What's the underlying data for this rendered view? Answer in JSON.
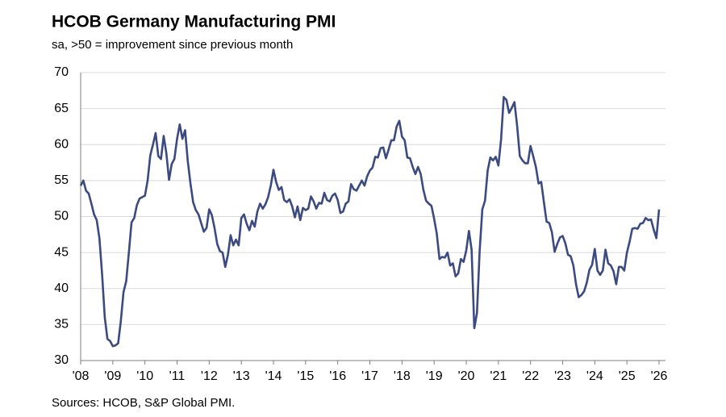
{
  "chart_data": {
    "type": "line",
    "title": "HCOB Germany Manufacturing PMI",
    "subtitle": "sa, >50 = improvement since previous month",
    "source": "Sources: HCOB, S&P Global PMI.",
    "categories": [
      "'08",
      null,
      null,
      null,
      null,
      null,
      null,
      null,
      null,
      null,
      null,
      null,
      "'09",
      null,
      null,
      null,
      null,
      null,
      null,
      null,
      null,
      null,
      null,
      null,
      "'10",
      null,
      null,
      null,
      null,
      null,
      null,
      null,
      null,
      null,
      null,
      null,
      "'11",
      null,
      null,
      null,
      null,
      null,
      null,
      null,
      null,
      null,
      null,
      null,
      "'12",
      null,
      null,
      null,
      null,
      null,
      null,
      null,
      null,
      null,
      null,
      null,
      "'13",
      null,
      null,
      null,
      null,
      null,
      null,
      null,
      null,
      null,
      null,
      null,
      "'14",
      null,
      null,
      null,
      null,
      null,
      null,
      null,
      null,
      null,
      null,
      null,
      "'15",
      null,
      null,
      null,
      null,
      null,
      null,
      null,
      null,
      null,
      null,
      null,
      "'16",
      null,
      null,
      null,
      null,
      null,
      null,
      null,
      null,
      null,
      null,
      null,
      "'17",
      null,
      null,
      null,
      null,
      null,
      null,
      null,
      null,
      null,
      null,
      null,
      "'18",
      null,
      null,
      null,
      null,
      null,
      null,
      null,
      null,
      null,
      null,
      null,
      "'19",
      null,
      null,
      null,
      null,
      null,
      null,
      null,
      null,
      null,
      null,
      null,
      "'20",
      null,
      null,
      null,
      null,
      null,
      null,
      null,
      null,
      null,
      null,
      null,
      "'21",
      null,
      null,
      null,
      null,
      null,
      null,
      null,
      null,
      null,
      null,
      null,
      "'22",
      null,
      null,
      null,
      null,
      null,
      null,
      null,
      null,
      null,
      null,
      null,
      "'23",
      null,
      null,
      null,
      null,
      null,
      null,
      null,
      null,
      null,
      null,
      null,
      "'24",
      null,
      null,
      null,
      null,
      null,
      null,
      null,
      null,
      null,
      null,
      null,
      "'25",
      null,
      null,
      null,
      null,
      null,
      null,
      null,
      null,
      null,
      null,
      null,
      "'26"
    ],
    "series": [
      {
        "color": "#3b4a80",
        "values": [
          54.3,
          55.0,
          53.6,
          53.2,
          51.8,
          50.3,
          49.5,
          47.0,
          42.0,
          36.0,
          33.0,
          32.7,
          32.0,
          32.1,
          32.4,
          35.5,
          39.5,
          41.0,
          45.0,
          49.2,
          49.8,
          51.6,
          52.5,
          52.7,
          52.9,
          55.0,
          58.5,
          60.0,
          61.6,
          58.4,
          58.0,
          61.2,
          58.8,
          55.1,
          57.3,
          58.0,
          60.8,
          62.8,
          60.8,
          62.0,
          57.7,
          54.6,
          52.0,
          50.9,
          50.3,
          49.1,
          47.9,
          48.4,
          51.0,
          50.2,
          48.4,
          46.2,
          45.2,
          45.0,
          43.0,
          44.7,
          47.4,
          46.0,
          46.8,
          46.0,
          49.8,
          50.3,
          49.0,
          48.1,
          49.4,
          48.6,
          50.7,
          51.8,
          51.1,
          51.7,
          52.7,
          54.3,
          56.5,
          54.8,
          53.7,
          54.1,
          52.3,
          52.0,
          52.4,
          51.4,
          49.9,
          51.4,
          49.5,
          51.2,
          50.9,
          51.1,
          52.8,
          52.1,
          51.1,
          51.9,
          51.8,
          53.3,
          52.3,
          52.1,
          52.9,
          53.2,
          52.3,
          50.5,
          50.7,
          51.8,
          52.1,
          54.5,
          53.8,
          53.6,
          54.3,
          55.0,
          54.3,
          55.6,
          56.4,
          56.8,
          58.3,
          58.2,
          59.5,
          59.6,
          58.1,
          59.3,
          60.6,
          60.6,
          62.5,
          63.3,
          61.1,
          60.6,
          58.2,
          58.1,
          56.9,
          55.9,
          56.9,
          55.9,
          53.7,
          52.2,
          51.8,
          51.5,
          49.7,
          47.6,
          44.1,
          44.4,
          44.3,
          45.0,
          43.2,
          43.5,
          41.7,
          42.1,
          44.1,
          43.7,
          45.3,
          48.0,
          45.4,
          34.5,
          36.6,
          45.2,
          51.0,
          52.2,
          56.4,
          58.2,
          57.8,
          58.3,
          57.1,
          60.7,
          66.6,
          66.2,
          64.4,
          65.1,
          65.9,
          62.6,
          58.4,
          57.8,
          57.4,
          57.4,
          59.8,
          58.4,
          56.9,
          54.6,
          54.8,
          52.0,
          49.3,
          49.1,
          47.8,
          45.1,
          46.2,
          47.1,
          47.3,
          46.3,
          44.7,
          44.5,
          43.2,
          40.6,
          38.8,
          39.1,
          39.6,
          40.8,
          42.6,
          43.3,
          45.5,
          42.5,
          41.9,
          42.5,
          45.4,
          43.5,
          43.2,
          42.4,
          40.6,
          43.0,
          43.0,
          42.5,
          45.0,
          46.5,
          48.3,
          48.4,
          48.3,
          49.0,
          49.1,
          49.8,
          49.5,
          49.6,
          48.2,
          47.0,
          51.0
        ]
      }
    ],
    "ylim": [
      30,
      70
    ],
    "yticks": [
      30,
      35,
      40,
      45,
      50,
      55,
      60,
      65,
      70
    ],
    "grid": true
  }
}
